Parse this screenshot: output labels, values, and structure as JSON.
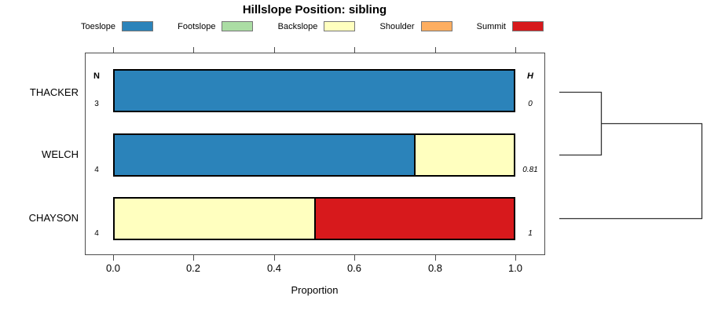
{
  "title": "Hillslope Position: sibling",
  "legend": {
    "items": [
      {
        "label": "Toeslope",
        "color": "#2B83BA"
      },
      {
        "label": "Footslope",
        "color": "#ABDDA4"
      },
      {
        "label": "Backslope",
        "color": "#FFFFBF"
      },
      {
        "label": "Shoulder",
        "color": "#FDAE61"
      },
      {
        "label": "Summit",
        "color": "#D7191C"
      }
    ]
  },
  "axis": {
    "xlabel": "Proportion",
    "ticks": [
      "0.0",
      "0.2",
      "0.4",
      "0.6",
      "0.8",
      "1.0"
    ]
  },
  "columns": {
    "n_header": "N",
    "h_header": "H"
  },
  "rows": [
    {
      "label": "THACKER",
      "n": "3",
      "h": "0"
    },
    {
      "label": "WELCH",
      "n": "4",
      "h": "0.81"
    },
    {
      "label": "CHAYSON",
      "n": "4",
      "h": "1"
    }
  ],
  "chart_data": {
    "type": "bar",
    "orientation": "horizontal",
    "stacked": true,
    "title": "Hillslope Position: sibling",
    "xlabel": "Proportion",
    "xlim": [
      0,
      1
    ],
    "xticks": [
      0.0,
      0.2,
      0.4,
      0.6,
      0.8,
      1.0
    ],
    "grid": false,
    "legend_position": "top",
    "categories": [
      "THACKER",
      "WELCH",
      "CHAYSON"
    ],
    "class_colors": {
      "Toeslope": "#2B83BA",
      "Footslope": "#ABDDA4",
      "Backslope": "#FFFFBF",
      "Shoulder": "#FDAE61",
      "Summit": "#D7191C"
    },
    "series_classes": [
      "Toeslope",
      "Footslope",
      "Backslope",
      "Shoulder",
      "Summit"
    ],
    "rows": [
      {
        "label": "THACKER",
        "n": 3,
        "shannon_h": 0,
        "segments": [
          {
            "class": "Toeslope",
            "value": 1.0
          }
        ]
      },
      {
        "label": "WELCH",
        "n": 4,
        "shannon_h": 0.81,
        "segments": [
          {
            "class": "Toeslope",
            "value": 0.75
          },
          {
            "class": "Backslope",
            "value": 0.25
          }
        ]
      },
      {
        "label": "CHAYSON",
        "n": 4,
        "shannon_h": 1,
        "segments": [
          {
            "class": "Backslope",
            "value": 0.5
          },
          {
            "class": "Summit",
            "value": 0.5
          }
        ]
      }
    ],
    "dendrogram": {
      "position": "right",
      "structure": [
        {
          "merge": [
            "THACKER",
            "WELCH"
          ],
          "order": 1
        },
        {
          "merge": [
            "THACKER+WELCH",
            "CHAYSON"
          ],
          "order": 2
        }
      ]
    }
  }
}
